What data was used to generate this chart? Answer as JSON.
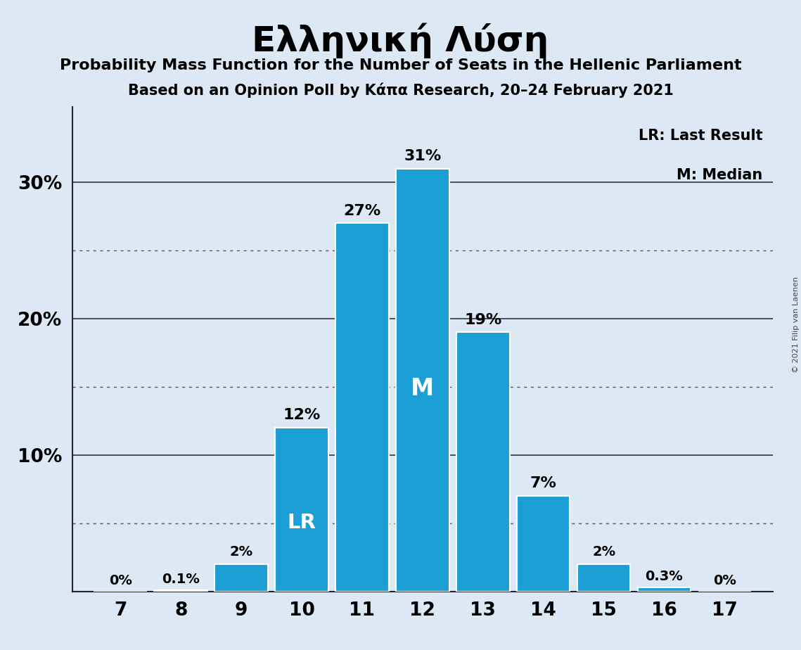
{
  "title": "Ελληνική Λύση",
  "subtitle1": "Probability Mass Function for the Number of Seats in the Hellenic Parliament",
  "subtitle2": "Based on an Opinion Poll by Κάπα Research, 20–24 February 2021",
  "copyright": "© 2021 Filip van Laenen",
  "legend_lr": "LR: Last Result",
  "legend_m": "M: Median",
  "seats": [
    7,
    8,
    9,
    10,
    11,
    12,
    13,
    14,
    15,
    16,
    17
  ],
  "probabilities": [
    0.0,
    0.001,
    0.02,
    0.12,
    0.27,
    0.31,
    0.19,
    0.07,
    0.02,
    0.003,
    0.0
  ],
  "bar_labels": [
    "0%",
    "0.1%",
    "2%",
    "12%",
    "27%",
    "31%",
    "19%",
    "7%",
    "2%",
    "0.3%",
    "0%"
  ],
  "bar_color": "#1B9FD4",
  "background_color": "#DCE9F5",
  "text_color": "#000000",
  "white_text_color": "#FFFFFF",
  "lr_seat": 10,
  "median_seat": 12,
  "ylim": [
    0,
    0.355
  ],
  "yticks": [
    0.1,
    0.2,
    0.3
  ],
  "ytick_labels": [
    "10%",
    "20%",
    "30%"
  ],
  "dotted_lines": [
    0.05,
    0.15,
    0.25
  ],
  "solid_lines": [
    0.1,
    0.2,
    0.3
  ]
}
